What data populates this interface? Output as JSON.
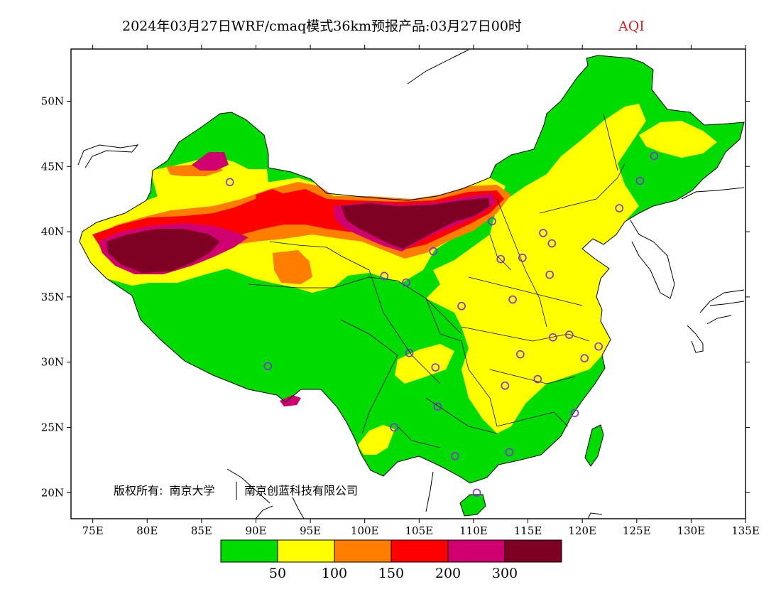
{
  "title": {
    "main": "2024年03月27日WRF/cmaq模式36km预报产品:03月27日00时",
    "product": "AQI"
  },
  "copyright": {
    "prefix": "版权所有:",
    "org1": "南京大学",
    "org2": "南京创蓝科技有限公司"
  },
  "map": {
    "lon_range": [
      73,
      135
    ],
    "lat_range": [
      18,
      54
    ],
    "x_ticks": [
      "75E",
      "80E",
      "85E",
      "90E",
      "95E",
      "100E",
      "105E",
      "110E",
      "115E",
      "120E",
      "125E",
      "130E",
      "135E"
    ],
    "y_ticks": [
      "20N",
      "25N",
      "30N",
      "35N",
      "40N",
      "45N",
      "50N"
    ],
    "x_tick_values": [
      75,
      80,
      85,
      90,
      95,
      100,
      105,
      110,
      115,
      120,
      125,
      130,
      135
    ],
    "y_tick_values": [
      20,
      25,
      30,
      35,
      40,
      45,
      50
    ]
  },
  "legend": {
    "colors": [
      "#00dc00",
      "#ffff00",
      "#ff7e00",
      "#ff0000",
      "#d00070",
      "#7e0023"
    ],
    "labels": [
      "50",
      "100",
      "150",
      "200",
      "300"
    ],
    "category_meaning": "AQI class colors"
  },
  "stations": [
    [
      87.6,
      43.8
    ],
    [
      91.1,
      29.7
    ],
    [
      101.8,
      36.6
    ],
    [
      103.8,
      36.1
    ],
    [
      106.3,
      38.5
    ],
    [
      108.9,
      34.3
    ],
    [
      111.7,
      40.8
    ],
    [
      112.5,
      37.9
    ],
    [
      114.5,
      38.0
    ],
    [
      116.4,
      39.9
    ],
    [
      117.2,
      39.1
    ],
    [
      117.0,
      36.7
    ],
    [
      113.6,
      34.8
    ],
    [
      114.3,
      30.6
    ],
    [
      112.9,
      28.2
    ],
    [
      115.9,
      28.7
    ],
    [
      117.3,
      31.9
    ],
    [
      118.8,
      32.1
    ],
    [
      120.2,
      30.3
    ],
    [
      121.5,
      31.2
    ],
    [
      119.3,
      26.1
    ],
    [
      113.3,
      23.1
    ],
    [
      108.3,
      22.8
    ],
    [
      106.7,
      26.6
    ],
    [
      104.1,
      30.7
    ],
    [
      106.5,
      29.6
    ],
    [
      102.7,
      25.0
    ],
    [
      110.3,
      20.0
    ],
    [
      123.4,
      41.8
    ],
    [
      125.3,
      43.9
    ],
    [
      126.6,
      45.8
    ]
  ]
}
